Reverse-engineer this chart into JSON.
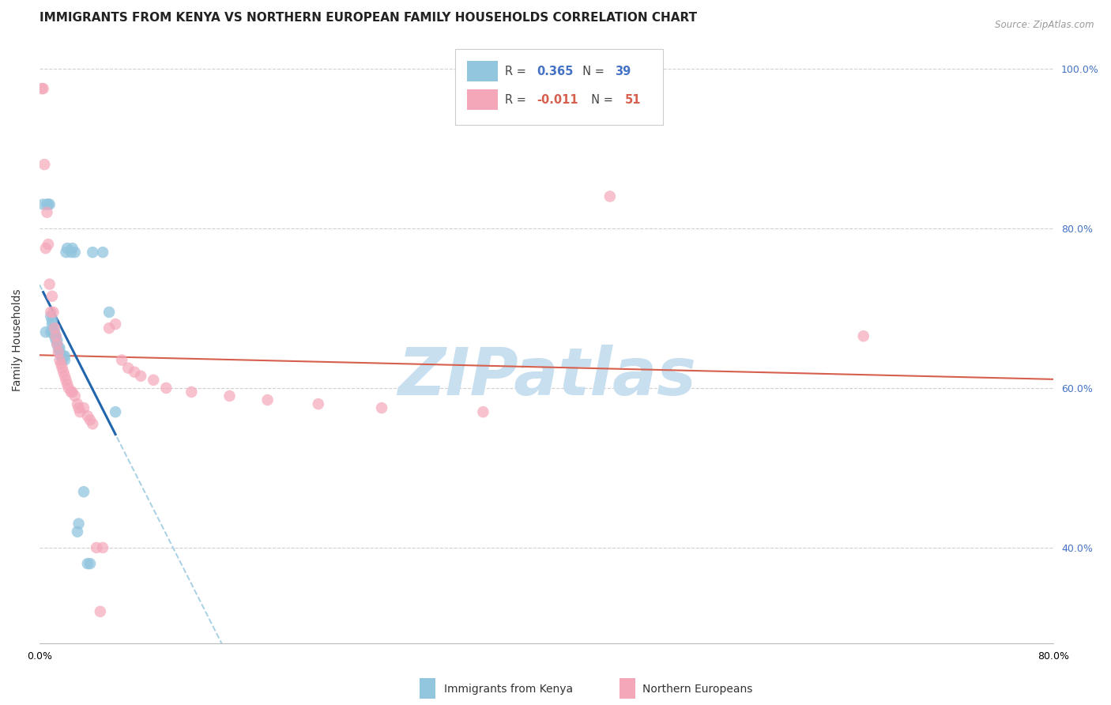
{
  "title": "IMMIGRANTS FROM KENYA VS NORTHERN EUROPEAN FAMILY HOUSEHOLDS CORRELATION CHART",
  "source": "Source: ZipAtlas.com",
  "ylabel": "Family Households",
  "r1": 0.365,
  "n1": 39,
  "r2": -0.011,
  "n2": 51,
  "color1": "#92c5de",
  "color2": "#f4a7b9",
  "line_color1": "#2166ac",
  "line_color2": "#d6604d",
  "dashed_color": "#92c5de",
  "xlim": [
    0.0,
    0.8
  ],
  "ylim": [
    0.28,
    1.04
  ],
  "xticks": [
    0.0,
    0.1,
    0.2,
    0.3,
    0.4,
    0.5,
    0.6,
    0.7,
    0.8
  ],
  "xtick_labels": [
    "0.0%",
    "",
    "",
    "",
    "",
    "",
    "",
    "",
    "80.0%"
  ],
  "ytick_positions": [
    0.4,
    0.6,
    0.8,
    1.0
  ],
  "ytick_labels": [
    "40.0%",
    "60.0%",
    "80.0%",
    "100.0%"
  ],
  "kenya_x": [
    0.003,
    0.005,
    0.006,
    0.007,
    0.008,
    0.009,
    0.009,
    0.01,
    0.01,
    0.011,
    0.011,
    0.012,
    0.012,
    0.013,
    0.013,
    0.014,
    0.014,
    0.015,
    0.016,
    0.016,
    0.017,
    0.018,
    0.019,
    0.02,
    0.02,
    0.021,
    0.022,
    0.025,
    0.026,
    0.028,
    0.03,
    0.031,
    0.035,
    0.038,
    0.04,
    0.042,
    0.05,
    0.055,
    0.06
  ],
  "kenya_y": [
    0.83,
    0.67,
    0.83,
    0.83,
    0.83,
    0.67,
    0.69,
    0.68,
    0.685,
    0.67,
    0.675,
    0.665,
    0.67,
    0.66,
    0.665,
    0.655,
    0.66,
    0.65,
    0.645,
    0.65,
    0.64,
    0.635,
    0.64,
    0.635,
    0.64,
    0.77,
    0.775,
    0.77,
    0.775,
    0.77,
    0.42,
    0.43,
    0.47,
    0.38,
    0.38,
    0.77,
    0.77,
    0.695,
    0.57
  ],
  "northern_x": [
    0.002,
    0.003,
    0.004,
    0.005,
    0.006,
    0.007,
    0.008,
    0.009,
    0.01,
    0.011,
    0.012,
    0.013,
    0.014,
    0.015,
    0.016,
    0.017,
    0.018,
    0.019,
    0.02,
    0.021,
    0.022,
    0.023,
    0.025,
    0.026,
    0.028,
    0.03,
    0.031,
    0.032,
    0.035,
    0.038,
    0.04,
    0.042,
    0.045,
    0.048,
    0.05,
    0.055,
    0.06,
    0.065,
    0.07,
    0.075,
    0.08,
    0.09,
    0.1,
    0.12,
    0.15,
    0.18,
    0.22,
    0.27,
    0.35,
    0.45,
    0.65
  ],
  "northern_y": [
    0.975,
    0.975,
    0.88,
    0.775,
    0.82,
    0.78,
    0.73,
    0.695,
    0.715,
    0.695,
    0.675,
    0.665,
    0.655,
    0.645,
    0.635,
    0.63,
    0.625,
    0.62,
    0.615,
    0.61,
    0.605,
    0.6,
    0.595,
    0.595,
    0.59,
    0.58,
    0.575,
    0.57,
    0.575,
    0.565,
    0.56,
    0.555,
    0.4,
    0.32,
    0.4,
    0.675,
    0.68,
    0.635,
    0.625,
    0.62,
    0.615,
    0.61,
    0.6,
    0.595,
    0.59,
    0.585,
    0.58,
    0.575,
    0.57,
    0.84,
    0.665
  ],
  "background_color": "#ffffff",
  "grid_color": "#d0d0d0",
  "title_fontsize": 11,
  "axis_label_fontsize": 10,
  "tick_fontsize": 9,
  "watermark_text": "ZIPatlas",
  "watermark_color": "#c8dff0",
  "watermark_fontsize": 60
}
